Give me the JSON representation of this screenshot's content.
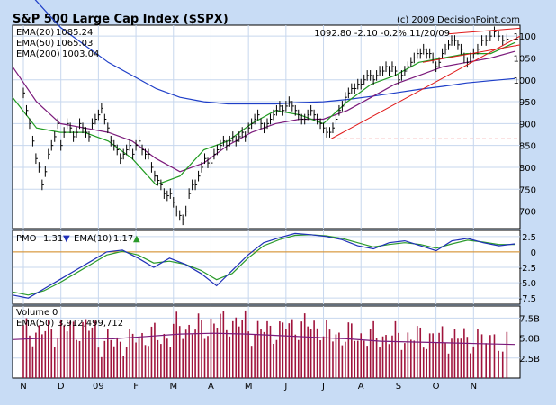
{
  "header": {
    "title": "S&P 500 Large Cap Index ($SPX)",
    "copyright": "(c) 2009 DecisionPoint.com",
    "quote": "1092.80  -2.10  -0.2%  11/20/09"
  },
  "colors": {
    "frame_bg": "#c8dcf5",
    "panel_bg": "#ffffff",
    "grid": "#c7d7ee",
    "price_bars": "#000000",
    "ema20": "#1f9a1f",
    "ema50": "#7b1a7b",
    "ema200": "#1f3fc8",
    "trendlines": "#e01818",
    "pmo": "#1f2fb8",
    "pmo_signal": "#2a9a2a",
    "zero_line": "#d98a1a",
    "volume_bars": "#a0143c",
    "volume_ema": "#7b1a7b"
  },
  "chart_data": [
    {
      "type": "line",
      "panel": "price",
      "legend": [
        {
          "label": "EMA(20)",
          "value": "1085.24"
        },
        {
          "label": "EMA(50)",
          "value": "1065.03"
        },
        {
          "label": "EMA(200)",
          "value": "1003.04"
        }
      ],
      "x_ticks": [
        "N",
        "D",
        "09",
        "F",
        "M",
        "A",
        "M",
        "J",
        "J",
        "A",
        "S",
        "O",
        "N"
      ],
      "y_ticks": [
        700,
        750,
        800,
        850,
        900,
        950,
        1000,
        1050,
        1100
      ],
      "ylim": [
        660,
        1125
      ],
      "grid": true,
      "price_monthly": [
        {
          "month": "Nov 2008",
          "values": [
            970,
            930,
            900,
            860,
            820,
            800,
            760,
            790,
            830,
            850,
            870,
            900
          ]
        },
        {
          "month": "Dec 2008",
          "values": [
            850,
            880,
            900,
            890,
            870,
            880,
            900,
            890,
            880,
            870,
            900,
            910
          ]
        },
        {
          "month": "Jan 2009",
          "values": [
            920,
            935,
            910,
            890,
            860,
            850,
            840,
            820,
            830,
            840,
            850,
            830
          ]
        },
        {
          "month": "Feb 2009",
          "values": [
            850,
            860,
            840,
            830,
            830,
            800,
            780,
            770,
            760,
            740,
            735,
            740
          ]
        },
        {
          "month": "Mar 2009",
          "values": [
            720,
            700,
            690,
            680,
            700,
            740,
            760,
            760,
            780,
            800,
            820,
            810
          ]
        },
        {
          "month": "Apr 2009",
          "values": [
            810,
            830,
            840,
            850,
            860,
            850,
            860,
            870,
            860,
            870,
            880,
            870
          ]
        },
        {
          "month": "May 2009",
          "values": [
            890,
            900,
            910,
            920,
            900,
            890,
            900,
            910,
            920,
            930,
            940,
            930
          ]
        },
        {
          "month": "Jun 2009",
          "values": [
            940,
            950,
            940,
            930,
            920,
            910,
            910,
            920,
            930,
            920,
            910,
            900
          ]
        },
        {
          "month": "Jul 2009",
          "values": [
            890,
            880,
            880,
            890,
            910,
            930,
            940,
            960,
            970,
            980,
            980,
            990
          ]
        },
        {
          "month": "Aug 2009",
          "values": [
            990,
            1000,
            1010,
            1010,
            1000,
            1010,
            1020,
            1020,
            1030,
            1020,
            1030,
            1020
          ]
        },
        {
          "month": "Sep 2009",
          "values": [
            1000,
            1010,
            1020,
            1030,
            1040,
            1050,
            1060,
            1060,
            1070,
            1060,
            1060,
            1050
          ]
        },
        {
          "month": "Oct 2009",
          "values": [
            1030,
            1040,
            1060,
            1070,
            1080,
            1090,
            1090,
            1080,
            1070,
            1050,
            1040,
            1050
          ]
        },
        {
          "month": "Nov 2009",
          "values": [
            1060,
            1070,
            1090,
            1090,
            1100,
            1110,
            1100,
            1090,
            1093
          ]
        }
      ],
      "ema_series_approx": [
        {
          "name": "EMA(20)",
          "values": [
            960,
            890,
            880,
            880,
            860,
            820,
            760,
            780,
            840,
            860,
            900,
            930,
            920,
            900,
            950,
            990,
            1010,
            1040,
            1050,
            1060,
            1060,
            1085
          ]
        },
        {
          "name": "EMA(50)",
          "values": [
            1030,
            950,
            900,
            890,
            880,
            860,
            820,
            790,
            810,
            850,
            880,
            900,
            910,
            910,
            930,
            960,
            990,
            1010,
            1030,
            1040,
            1050,
            1065
          ]
        },
        {
          "name": "EMA(200)",
          "values": [
            1240,
            1180,
            1120,
            1080,
            1040,
            1010,
            980,
            960,
            950,
            945,
            945,
            945,
            948,
            950,
            955,
            962,
            970,
            978,
            985,
            993,
            998,
            1003
          ]
        }
      ],
      "annotations": [
        "support trendlines",
        "horizontal support ~865"
      ]
    },
    {
      "type": "line",
      "panel": "PMO",
      "legend": [
        {
          "label": "PMO",
          "value": "1.31"
        },
        {
          "label": "EMA(10)",
          "value": "1.17"
        }
      ],
      "y_ticks": [
        2.5,
        0,
        -2.5,
        -5.0,
        -7.5
      ],
      "y_tick_labels": [
        "2.5",
        "0",
        "-2.5",
        "-5.0",
        "-7.5"
      ],
      "ylim": [
        -8.5,
        3.5
      ],
      "series": [
        {
          "name": "PMO",
          "values": [
            -7.0,
            -7.5,
            -6.0,
            -4.5,
            -3.0,
            -1.5,
            0,
            0.3,
            -1.0,
            -2.5,
            -1.0,
            -2.0,
            -3.5,
            -5.5,
            -3.0,
            -0.5,
            1.5,
            2.3,
            3.0,
            2.8,
            2.5,
            2.0,
            1.0,
            0.5,
            1.5,
            1.8,
            1.0,
            0.2,
            1.8,
            2.2,
            1.5,
            1.0,
            1.3
          ]
        },
        {
          "name": "EMA(10)",
          "values": [
            -6.5,
            -7.0,
            -6.3,
            -5.0,
            -3.5,
            -2.0,
            -0.5,
            0.1,
            -0.5,
            -1.8,
            -1.5,
            -2.0,
            -3.0,
            -4.5,
            -3.5,
            -1.0,
            1.0,
            2.0,
            2.7,
            2.8,
            2.6,
            2.2,
            1.5,
            0.8,
            1.2,
            1.5,
            1.2,
            0.6,
            1.3,
            1.9,
            1.6,
            1.2,
            1.2
          ]
        }
      ]
    },
    {
      "type": "bar",
      "panel": "Volume",
      "legend": [
        {
          "label": "Volume",
          "value": "0"
        },
        {
          "label": "EMA(50)",
          "value": "3,912,499,712"
        }
      ],
      "y_ticks": [
        7.5,
        5.0,
        2.5
      ],
      "y_tick_labels": [
        "7.5B",
        "5.0B",
        "2.5B"
      ],
      "ylim": [
        0,
        9
      ],
      "volume_monthly_billions": [
        5.8,
        6.2,
        4.5,
        5.2,
        6.3,
        6.9,
        6.0,
        6.5,
        5.4,
        5.2,
        5.1,
        5.0,
        4.8
      ],
      "ema50_billions_approx": [
        4.8,
        5.0,
        5.0,
        4.9,
        5.2,
        5.5,
        5.6,
        5.5,
        5.3,
        5.1,
        4.9,
        4.6,
        4.5,
        4.4,
        4.3,
        4.2
      ]
    }
  ]
}
